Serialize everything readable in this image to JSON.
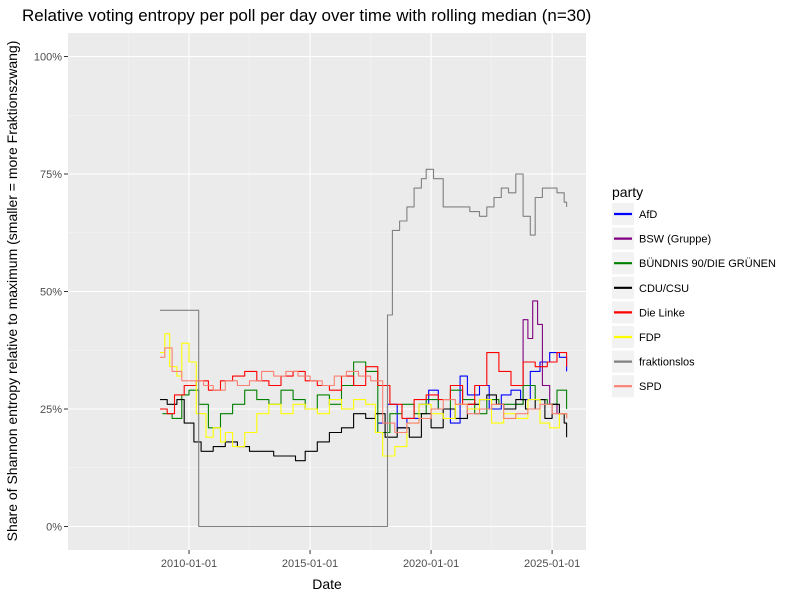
{
  "chart_data": {
    "type": "line",
    "title": "Relative voting entropy per poll per day over time with rolling median (n=30)",
    "xlabel": "Date",
    "ylabel": "Share of Shannon entropy relative to maximum (smaller = more Fraktionszwang)",
    "x_ticks": [
      "2010-01-01",
      "2015-01-01",
      "2020-01-01",
      "2025-01-01"
    ],
    "y_ticks": [
      "0%",
      "25%",
      "50%",
      "75%",
      "100%"
    ],
    "xlim": [
      2005.0,
      2026.4
    ],
    "ylim": [
      -0.05,
      1.05
    ],
    "grid": true,
    "legend": {
      "title": "party",
      "position": "right"
    },
    "series": [
      {
        "name": "AfD",
        "color": "#0000ff",
        "points": [
          [
            2017.8,
            0.22
          ],
          [
            2018.2,
            0.26
          ],
          [
            2018.6,
            0.21
          ],
          [
            2019.0,
            0.23
          ],
          [
            2019.5,
            0.26
          ],
          [
            2019.9,
            0.29
          ],
          [
            2020.3,
            0.25
          ],
          [
            2020.8,
            0.22
          ],
          [
            2021.2,
            0.32
          ],
          [
            2021.5,
            0.28
          ],
          [
            2022.0,
            0.3
          ],
          [
            2022.4,
            0.25
          ],
          [
            2022.9,
            0.28
          ],
          [
            2023.3,
            0.29
          ],
          [
            2023.7,
            0.27
          ],
          [
            2024.1,
            0.33
          ],
          [
            2024.5,
            0.35
          ],
          [
            2024.9,
            0.37
          ],
          [
            2025.3,
            0.36
          ],
          [
            2025.6,
            0.33
          ]
        ]
      },
      {
        "name": "BSW (Gruppe)",
        "color": "#800080",
        "points": [
          [
            2023.5,
            0.26
          ],
          [
            2023.8,
            0.44
          ],
          [
            2024.0,
            0.4
          ],
          [
            2024.2,
            0.48
          ],
          [
            2024.4,
            0.43
          ],
          [
            2024.6,
            0.3
          ],
          [
            2024.9,
            0.26
          ],
          [
            2025.2,
            0.24
          ],
          [
            2025.6,
            0.23
          ]
        ]
      },
      {
        "name": "BÜNDNIS 90/DIE GRÜNEN",
        "color": "#008000",
        "points": [
          [
            2008.9,
            0.24
          ],
          [
            2009.3,
            0.23
          ],
          [
            2009.7,
            0.28
          ],
          [
            2010.0,
            0.29
          ],
          [
            2010.4,
            0.26
          ],
          [
            2010.8,
            0.21
          ],
          [
            2011.3,
            0.24
          ],
          [
            2011.8,
            0.26
          ],
          [
            2012.3,
            0.29
          ],
          [
            2012.8,
            0.27
          ],
          [
            2013.3,
            0.26
          ],
          [
            2013.8,
            0.29
          ],
          [
            2014.3,
            0.27
          ],
          [
            2014.8,
            0.25
          ],
          [
            2015.3,
            0.28
          ],
          [
            2015.8,
            0.26
          ],
          [
            2016.3,
            0.3
          ],
          [
            2016.8,
            0.35
          ],
          [
            2017.3,
            0.33
          ],
          [
            2017.8,
            0.2
          ],
          [
            2018.3,
            0.24
          ],
          [
            2018.8,
            0.26
          ],
          [
            2019.3,
            0.24
          ],
          [
            2019.8,
            0.27
          ],
          [
            2020.3,
            0.25
          ],
          [
            2020.8,
            0.29
          ],
          [
            2021.3,
            0.27
          ],
          [
            2021.8,
            0.24
          ],
          [
            2022.3,
            0.27
          ],
          [
            2022.8,
            0.26
          ],
          [
            2023.3,
            0.26
          ],
          [
            2023.8,
            0.3
          ],
          [
            2024.3,
            0.27
          ],
          [
            2024.8,
            0.26
          ],
          [
            2025.2,
            0.29
          ],
          [
            2025.6,
            0.25
          ]
        ]
      },
      {
        "name": "CDU/CSU",
        "color": "#000000",
        "points": [
          [
            2008.8,
            0.27
          ],
          [
            2009.1,
            0.26
          ],
          [
            2009.5,
            0.27
          ],
          [
            2009.8,
            0.22
          ],
          [
            2010.2,
            0.18
          ],
          [
            2010.5,
            0.16
          ],
          [
            2011.0,
            0.17
          ],
          [
            2011.5,
            0.18
          ],
          [
            2012.0,
            0.17
          ],
          [
            2012.5,
            0.16
          ],
          [
            2013.0,
            0.16
          ],
          [
            2013.5,
            0.15
          ],
          [
            2014.0,
            0.15
          ],
          [
            2014.4,
            0.14
          ],
          [
            2014.8,
            0.16
          ],
          [
            2015.3,
            0.18
          ],
          [
            2015.8,
            0.2
          ],
          [
            2016.3,
            0.21
          ],
          [
            2016.8,
            0.24
          ],
          [
            2017.3,
            0.23
          ],
          [
            2017.7,
            0.24
          ],
          [
            2018.1,
            0.19
          ],
          [
            2018.6,
            0.21
          ],
          [
            2019.1,
            0.19
          ],
          [
            2019.6,
            0.24
          ],
          [
            2020.0,
            0.21
          ],
          [
            2020.5,
            0.25
          ],
          [
            2021.0,
            0.23
          ],
          [
            2021.5,
            0.26
          ],
          [
            2022.0,
            0.27
          ],
          [
            2022.3,
            0.28
          ],
          [
            2022.7,
            0.26
          ],
          [
            2023.0,
            0.25
          ],
          [
            2023.5,
            0.27
          ],
          [
            2023.9,
            0.25
          ],
          [
            2024.3,
            0.27
          ],
          [
            2024.7,
            0.23
          ],
          [
            2025.0,
            0.26
          ],
          [
            2025.3,
            0.24
          ],
          [
            2025.5,
            0.22
          ],
          [
            2025.6,
            0.19
          ]
        ]
      },
      {
        "name": "Die Linke",
        "color": "#ff0000",
        "points": [
          [
            2008.8,
            0.25
          ],
          [
            2009.1,
            0.24
          ],
          [
            2009.4,
            0.28
          ],
          [
            2009.8,
            0.3
          ],
          [
            2010.3,
            0.31
          ],
          [
            2010.8,
            0.29
          ],
          [
            2011.3,
            0.31
          ],
          [
            2011.8,
            0.32
          ],
          [
            2012.3,
            0.33
          ],
          [
            2012.8,
            0.31
          ],
          [
            2013.3,
            0.3
          ],
          [
            2013.8,
            0.32
          ],
          [
            2014.3,
            0.33
          ],
          [
            2014.8,
            0.31
          ],
          [
            2015.3,
            0.3
          ],
          [
            2015.8,
            0.29
          ],
          [
            2016.3,
            0.32
          ],
          [
            2016.8,
            0.3
          ],
          [
            2017.3,
            0.34
          ],
          [
            2017.8,
            0.3
          ],
          [
            2018.3,
            0.26
          ],
          [
            2018.8,
            0.23
          ],
          [
            2019.3,
            0.27
          ],
          [
            2019.8,
            0.28
          ],
          [
            2020.3,
            0.27
          ],
          [
            2020.8,
            0.3
          ],
          [
            2021.3,
            0.26
          ],
          [
            2021.8,
            0.3
          ],
          [
            2022.3,
            0.37
          ],
          [
            2022.8,
            0.33
          ],
          [
            2023.3,
            0.3
          ],
          [
            2023.8,
            0.35
          ],
          [
            2024.3,
            0.34
          ],
          [
            2024.8,
            0.35
          ],
          [
            2025.2,
            0.37
          ],
          [
            2025.6,
            0.34
          ]
        ]
      },
      {
        "name": "FDP",
        "color": "#ffff00",
        "points": [
          [
            2008.8,
            0.37
          ],
          [
            2009.0,
            0.41
          ],
          [
            2009.2,
            0.34
          ],
          [
            2009.5,
            0.32
          ],
          [
            2009.7,
            0.39
          ],
          [
            2010.0,
            0.35
          ],
          [
            2010.3,
            0.24
          ],
          [
            2010.7,
            0.19
          ],
          [
            2011.0,
            0.21
          ],
          [
            2011.3,
            0.18
          ],
          [
            2011.5,
            0.2
          ],
          [
            2011.8,
            0.17
          ],
          [
            2012.3,
            0.2
          ],
          [
            2012.8,
            0.24
          ],
          [
            2013.3,
            0.26
          ],
          [
            2013.8,
            0.24
          ],
          [
            2014.3,
            0.26
          ],
          [
            2014.8,
            0.25
          ],
          [
            2015.3,
            0.24
          ],
          [
            2015.8,
            0.27
          ],
          [
            2016.3,
            0.25
          ],
          [
            2016.8,
            0.27
          ],
          [
            2017.3,
            0.26
          ],
          [
            2017.7,
            0.2
          ],
          [
            2018.0,
            0.15
          ],
          [
            2018.5,
            0.17
          ],
          [
            2019.0,
            0.22
          ],
          [
            2019.5,
            0.26
          ],
          [
            2020.0,
            0.24
          ],
          [
            2020.5,
            0.23
          ],
          [
            2021.0,
            0.26
          ],
          [
            2021.5,
            0.25
          ],
          [
            2022.0,
            0.27
          ],
          [
            2022.5,
            0.22
          ],
          [
            2023.0,
            0.24
          ],
          [
            2023.5,
            0.23
          ],
          [
            2024.0,
            0.27
          ],
          [
            2024.5,
            0.22
          ],
          [
            2024.9,
            0.21
          ],
          [
            2025.3,
            0.24
          ],
          [
            2025.6,
            0.23
          ]
        ]
      },
      {
        "name": "fraktionslos",
        "color": "#808080",
        "points": [
          [
            2008.8,
            0.46
          ],
          [
            2009.7,
            0.46
          ],
          [
            2010.3,
            0.46
          ],
          [
            2010.4,
            0.0
          ],
          [
            2018.1,
            0.0
          ],
          [
            2018.2,
            0.45
          ],
          [
            2018.4,
            0.63
          ],
          [
            2018.7,
            0.65
          ],
          [
            2019.0,
            0.68
          ],
          [
            2019.3,
            0.72
          ],
          [
            2019.6,
            0.74
          ],
          [
            2019.8,
            0.76
          ],
          [
            2020.1,
            0.74
          ],
          [
            2020.5,
            0.68
          ],
          [
            2021.0,
            0.68
          ],
          [
            2021.6,
            0.67
          ],
          [
            2022.0,
            0.66
          ],
          [
            2022.3,
            0.68
          ],
          [
            2022.6,
            0.7
          ],
          [
            2022.9,
            0.72
          ],
          [
            2023.2,
            0.71
          ],
          [
            2023.5,
            0.75
          ],
          [
            2023.8,
            0.66
          ],
          [
            2024.1,
            0.62
          ],
          [
            2024.3,
            0.7
          ],
          [
            2024.6,
            0.72
          ],
          [
            2024.9,
            0.72
          ],
          [
            2025.2,
            0.71
          ],
          [
            2025.5,
            0.69
          ],
          [
            2025.6,
            0.68
          ]
        ]
      },
      {
        "name": "SPD",
        "color": "#fa8072",
        "points": [
          [
            2008.8,
            0.36
          ],
          [
            2009.0,
            0.38
          ],
          [
            2009.3,
            0.33
          ],
          [
            2009.7,
            0.31
          ],
          [
            2010.2,
            0.31
          ],
          [
            2010.6,
            0.3
          ],
          [
            2011.0,
            0.29
          ],
          [
            2011.5,
            0.31
          ],
          [
            2012.0,
            0.3
          ],
          [
            2012.5,
            0.31
          ],
          [
            2013.0,
            0.33
          ],
          [
            2013.5,
            0.32
          ],
          [
            2014.0,
            0.33
          ],
          [
            2014.5,
            0.32
          ],
          [
            2015.0,
            0.31
          ],
          [
            2015.5,
            0.3
          ],
          [
            2016.0,
            0.32
          ],
          [
            2016.5,
            0.33
          ],
          [
            2017.0,
            0.32
          ],
          [
            2017.5,
            0.31
          ],
          [
            2018.0,
            0.22
          ],
          [
            2018.5,
            0.2
          ],
          [
            2019.0,
            0.22
          ],
          [
            2019.5,
            0.23
          ],
          [
            2020.0,
            0.25
          ],
          [
            2020.5,
            0.27
          ],
          [
            2021.0,
            0.26
          ],
          [
            2021.5,
            0.24
          ],
          [
            2022.0,
            0.25
          ],
          [
            2022.5,
            0.26
          ],
          [
            2023.0,
            0.23
          ],
          [
            2023.5,
            0.24
          ],
          [
            2024.0,
            0.25
          ],
          [
            2024.5,
            0.26
          ],
          [
            2025.0,
            0.24
          ],
          [
            2025.6,
            0.23
          ]
        ]
      }
    ]
  }
}
